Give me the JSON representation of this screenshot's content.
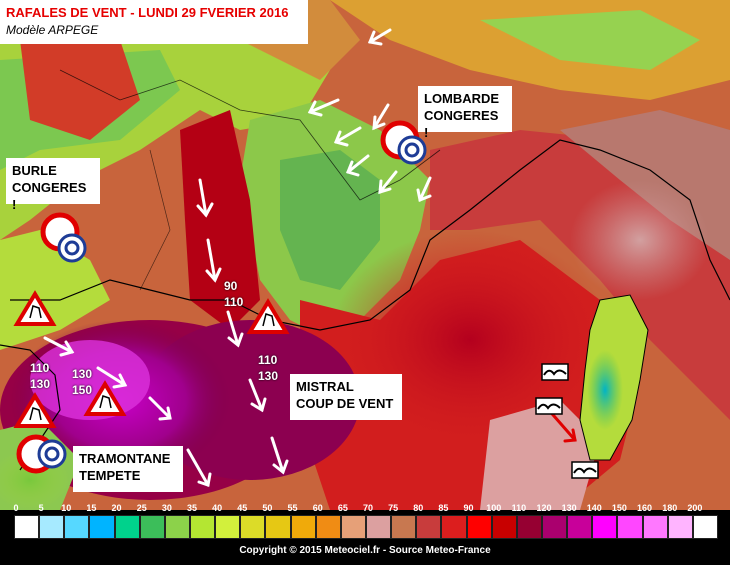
{
  "title": "RAFALES DE VENT - LUNDI 29 FVERIER 2016",
  "subtitle": "Modèle ARPEGE",
  "annotations": {
    "burle": [
      "BURLE",
      "CONGERES !"
    ],
    "lombarde": [
      "LOMBARDE",
      "CONGERES !"
    ],
    "mistral": [
      "MISTRAL",
      "COUP DE VENT"
    ],
    "tramontane": [
      "TRAMONTANE",
      "TEMPETE"
    ]
  },
  "speed_labels": {
    "rhone": [
      "90",
      "110"
    ],
    "gulf_east": [
      "110",
      "130"
    ],
    "gulf_mid": [
      "130",
      "150"
    ],
    "gulf_west": [
      "110",
      "130"
    ]
  },
  "scale": {
    "values": [
      "0",
      "5",
      "10",
      "15",
      "20",
      "25",
      "30",
      "35",
      "40",
      "45",
      "50",
      "55",
      "60",
      "65",
      "70",
      "75",
      "80",
      "85",
      "90",
      "100",
      "110",
      "120",
      "130",
      "140",
      "150",
      "160",
      "180",
      "200"
    ],
    "colors": [
      "#ffffff",
      "#a6eaff",
      "#56d8ff",
      "#00b4ff",
      "#00d28c",
      "#3cbe5a",
      "#8cd24a",
      "#b4e632",
      "#d2f03c",
      "#dcdc28",
      "#e6c814",
      "#f0aa0a",
      "#f08c14",
      "#e6a078",
      "#dca0a0",
      "#c87850",
      "#c83c3c",
      "#dc1e1e",
      "#ff0000",
      "#c80000",
      "#960032",
      "#aa006e",
      "#c8009a",
      "#ff00ff",
      "#ff46ff",
      "#ff78ff",
      "#ffb4ff",
      "#ffffff"
    ]
  },
  "copyright": "Copyright © 2015 Meteociel.fr - Source Meteo-France"
}
